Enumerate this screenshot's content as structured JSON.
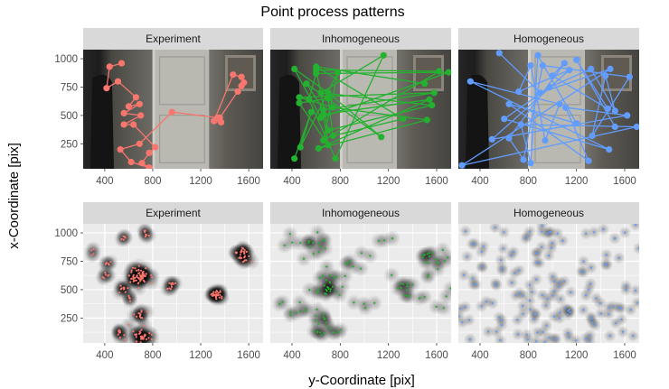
{
  "title": "Point process patterns",
  "xlabel": "y-Coordinate [pix]",
  "ylabel": "x-Coordinate [pix]",
  "colors": {
    "Experiment": "#F8766D",
    "Inhomogeneous": "#24B12F",
    "Homogeneous": "#619CFF"
  },
  "chart_data": [
    {
      "type": "line",
      "panel": "Experiment",
      "row": "trajectory",
      "background": "photo-door",
      "x_ticks": [
        400,
        800,
        1200,
        1600
      ],
      "y_ticks": [
        250,
        500,
        750,
        1000
      ],
      "xlim": [
        220,
        1720
      ],
      "ylim": [
        30,
        1080
      ],
      "series": [
        {
          "x": [
            540,
            440,
            415,
            510,
            660,
            600,
            690,
            560,
            700,
            560,
            640,
            820,
            770,
            710,
            770,
            620,
            530,
            690,
            960,
            1340,
            1370,
            1310,
            1470,
            1540,
            1560,
            1510,
            1540,
            1360
          ],
          "y": [
            960,
            930,
            740,
            800,
            660,
            580,
            600,
            520,
            500,
            420,
            420,
            220,
            170,
            80,
            40,
            90,
            200,
            250,
            530,
            480,
            440,
            450,
            860,
            840,
            790,
            710,
            760,
            480
          ]
        }
      ]
    },
    {
      "type": "line",
      "panel": "Inhomogeneous",
      "row": "trajectory",
      "background": "photo-door",
      "x_ticks": [
        400,
        800,
        1200,
        1600
      ],
      "y_ticks": [
        250,
        500,
        750,
        1000
      ],
      "xlim": [
        220,
        1720
      ],
      "ylim": [
        30,
        1080
      ],
      "series": [
        {
          "x": [
            420,
            560,
            470,
            780,
            660,
            1620,
            600,
            700,
            1560,
            640,
            1160,
            760,
            540,
            600,
            1700,
            640,
            420,
            700,
            1140,
            520,
            660,
            1580,
            460,
            740,
            1520,
            620,
            1540,
            660,
            700,
            460,
            700,
            740,
            1320,
            600,
            1500
          ],
          "y": [
            120,
            530,
            220,
            880,
            280,
            890,
            900,
            370,
            590,
            700,
            1030,
            120,
            640,
            870,
            880,
            480,
            910,
            700,
            310,
            780,
            550,
            700,
            660,
            570,
            460,
            210,
            640,
            510,
            240,
            610,
            650,
            320,
            470,
            930,
            780
          ]
        }
      ]
    },
    {
      "type": "line",
      "panel": "Homogeneous",
      "row": "trajectory",
      "background": "photo-door",
      "x_ticks": [
        400,
        800,
        1200,
        1600
      ],
      "y_ticks": [
        250,
        500,
        750,
        1000
      ],
      "xlim": [
        220,
        1720
      ],
      "ylim": [
        30,
        1080
      ],
      "series": [
        {
          "x": [
            560,
            900,
            1480,
            250,
            1700,
            740,
            820,
            880,
            1200,
            640,
            1300,
            1110,
            1620,
            500,
            1140,
            720,
            820,
            940,
            1060,
            320,
            1470,
            600,
            980,
            1320,
            1520,
            1440,
            1330,
            1640,
            920,
            760,
            640,
            1100,
            1000,
            1460,
            1200,
            1520
          ],
          "y": [
            1050,
            700,
            910,
            60,
            400,
            420,
            80,
            1030,
            430,
            600,
            100,
            570,
            500,
            290,
            900,
            710,
            940,
            280,
            600,
            800,
            200,
            470,
            750,
            910,
            540,
            850,
            320,
            840,
            940,
            110,
            300,
            960,
            850,
            560,
            990,
            400
          ]
        }
      ]
    },
    {
      "type": "scatter",
      "panel": "Experiment",
      "row": "density",
      "x_ticks": [
        400,
        800,
        1200,
        1600
      ],
      "y_ticks": [
        250,
        500,
        750,
        1000
      ],
      "xlim": [
        220,
        1720
      ],
      "ylim": [
        30,
        1080
      ],
      "clusters": [
        {
          "x": 690,
          "y": 620,
          "n": 60,
          "spread": 42
        },
        {
          "x": 1340,
          "y": 450,
          "n": 28,
          "spread": 24
        },
        {
          "x": 1540,
          "y": 800,
          "n": 30,
          "spread": 38
        },
        {
          "x": 720,
          "y": 100,
          "n": 34,
          "spread": 42
        },
        {
          "x": 520,
          "y": 110,
          "n": 10,
          "spread": 24
        },
        {
          "x": 700,
          "y": 280,
          "n": 12,
          "spread": 24
        },
        {
          "x": 960,
          "y": 540,
          "n": 10,
          "spread": 22
        },
        {
          "x": 560,
          "y": 520,
          "n": 10,
          "spread": 22
        },
        {
          "x": 400,
          "y": 620,
          "n": 6,
          "spread": 18
        },
        {
          "x": 420,
          "y": 740,
          "n": 5,
          "spread": 14
        },
        {
          "x": 560,
          "y": 960,
          "n": 5,
          "spread": 16
        },
        {
          "x": 740,
          "y": 1000,
          "n": 7,
          "spread": 18
        },
        {
          "x": 300,
          "y": 820,
          "n": 4,
          "spread": 14
        },
        {
          "x": 620,
          "y": 420,
          "n": 5,
          "spread": 16
        }
      ]
    },
    {
      "type": "scatter",
      "panel": "Inhomogeneous",
      "row": "density",
      "x_ticks": [
        400,
        800,
        1200,
        1600
      ],
      "y_ticks": [
        250,
        500,
        750,
        1000
      ],
      "xlim": [
        220,
        1720
      ],
      "ylim": [
        30,
        1080
      ],
      "clusters": [
        {
          "x": 700,
          "y": 560,
          "n": 28,
          "spread": 70
        },
        {
          "x": 660,
          "y": 180,
          "n": 22,
          "spread": 70
        },
        {
          "x": 1560,
          "y": 760,
          "n": 18,
          "spread": 70
        },
        {
          "x": 1350,
          "y": 500,
          "n": 14,
          "spread": 55
        },
        {
          "x": 600,
          "y": 880,
          "n": 14,
          "spread": 60
        },
        {
          "x": 430,
          "y": 320,
          "n": 8,
          "spread": 50
        },
        {
          "x": 1100,
          "y": 850,
          "n": 5,
          "spread": 70
        },
        {
          "x": 900,
          "y": 750,
          "n": 5,
          "spread": 60
        },
        {
          "x": 1650,
          "y": 450,
          "n": 4,
          "spread": 40
        },
        {
          "x": 1000,
          "y": 300,
          "n": 4,
          "spread": 60
        },
        {
          "x": 380,
          "y": 950,
          "n": 4,
          "spread": 40
        }
      ]
    },
    {
      "type": "scatter",
      "panel": "Homogeneous",
      "row": "density",
      "x_ticks": [
        400,
        800,
        1200,
        1600
      ],
      "y_ticks": [
        250,
        500,
        750,
        1000
      ],
      "xlim": [
        220,
        1720
      ],
      "ylim": [
        30,
        1080
      ],
      "uniform_points": 150
    }
  ]
}
